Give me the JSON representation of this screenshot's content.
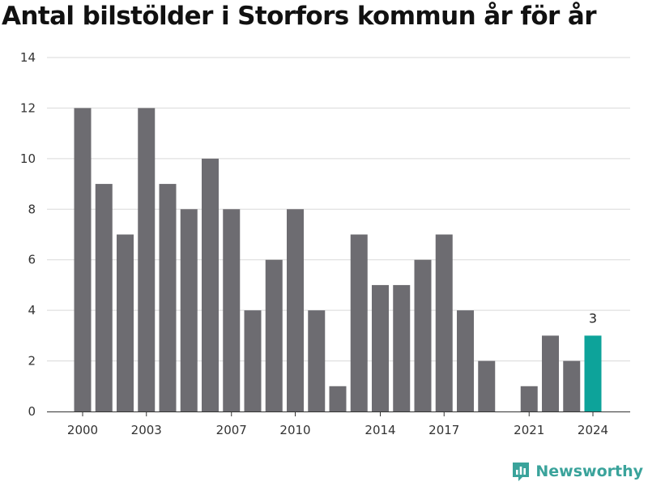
{
  "colors": {
    "bar": "#6d6c71",
    "highlight": "#0da39a",
    "grid": "#d9d9d9",
    "axis": "#333333",
    "brand": "#3aa39b"
  },
  "brand": {
    "name": "Newsworthy",
    "icon": "newsworthy-logo-icon"
  },
  "chart_data": {
    "type": "bar",
    "title": "Antal bilstölder i Storfors kommun år för år",
    "xlabel": "",
    "ylabel": "",
    "ylim": [
      0,
      14
    ],
    "yticks": [
      0,
      2,
      4,
      6,
      8,
      10,
      12,
      14
    ],
    "xticks": [
      2000,
      2003,
      2007,
      2010,
      2014,
      2017,
      2021,
      2024
    ],
    "grid": true,
    "categories": [
      2000,
      2001,
      2002,
      2003,
      2004,
      2005,
      2006,
      2007,
      2008,
      2009,
      2010,
      2011,
      2012,
      2013,
      2014,
      2015,
      2016,
      2017,
      2018,
      2019,
      2020,
      2021,
      2022,
      2023,
      2024
    ],
    "values": [
      12,
      9,
      7,
      12,
      9,
      8,
      10,
      8,
      4,
      6,
      8,
      4,
      1,
      7,
      5,
      5,
      6,
      7,
      4,
      2,
      0,
      1,
      3,
      2,
      3
    ],
    "highlight": {
      "category": 2024,
      "label": "3"
    }
  }
}
